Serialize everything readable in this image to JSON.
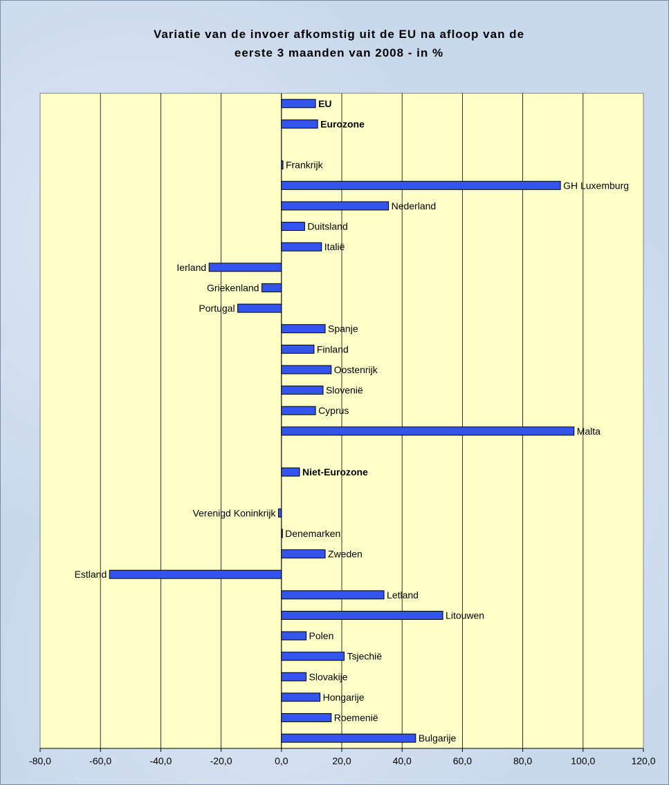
{
  "chart_data": {
    "type": "bar",
    "orientation": "horizontal",
    "title_line1": "Variatie van de invoer afkomstig uit de EU na afloop van de",
    "title_line2": "eerste 3 maanden van 2008 - in %",
    "xlim": [
      -80,
      120
    ],
    "xticks": [
      "-80,0",
      "-60,0",
      "-40,0",
      "-20,0",
      "0,0",
      "20,0",
      "40,0",
      "60,0",
      "80,0",
      "100,0",
      "120,0"
    ],
    "grid": true,
    "plot_background": "#ffffc8",
    "bar_color": "#3355ee",
    "categories": [
      {
        "label": "EU",
        "value": 11.3,
        "bold": true
      },
      {
        "label": "Eurozone",
        "value": 12.0,
        "bold": true
      },
      {
        "label": "",
        "value": null
      },
      {
        "label": "Frankrijk",
        "value": 0.5
      },
      {
        "label": "GH Luxemburg",
        "value": 92.5
      },
      {
        "label": "Nederland",
        "value": 35.5
      },
      {
        "label": "Duitsland",
        "value": 7.7
      },
      {
        "label": "Italië",
        "value": 13.3
      },
      {
        "label": "Ierland",
        "value": -24.0
      },
      {
        "label": "Griekenland",
        "value": -6.5
      },
      {
        "label": "Portugal",
        "value": -14.5
      },
      {
        "label": "Spanje",
        "value": 14.5
      },
      {
        "label": "Finland",
        "value": 10.8
      },
      {
        "label": "Oostenrijk",
        "value": 16.5
      },
      {
        "label": "Slovenië",
        "value": 13.8
      },
      {
        "label": "Cyprus",
        "value": 11.3
      },
      {
        "label": "Malta",
        "value": 97.0
      },
      {
        "label": "",
        "value": null
      },
      {
        "label": "Niet-Eurozone",
        "value": 6.0,
        "bold": true
      },
      {
        "label": "",
        "value": null
      },
      {
        "label": "Verenigd Koninkrijk",
        "value": -1.0
      },
      {
        "label": "Denemarken",
        "value": 0.3
      },
      {
        "label": "Zweden",
        "value": 14.5
      },
      {
        "label": "Estland",
        "value": -57.0
      },
      {
        "label": "Letland",
        "value": 34.0
      },
      {
        "label": "Litouwen",
        "value": 53.5
      },
      {
        "label": "Polen",
        "value": 8.2
      },
      {
        "label": "Tsjechië",
        "value": 20.8
      },
      {
        "label": "Slovakije",
        "value": 8.2
      },
      {
        "label": "Hongarije",
        "value": 12.8
      },
      {
        "label": "Roemenië",
        "value": 16.5
      },
      {
        "label": "Bulgarije",
        "value": 44.5
      }
    ]
  }
}
